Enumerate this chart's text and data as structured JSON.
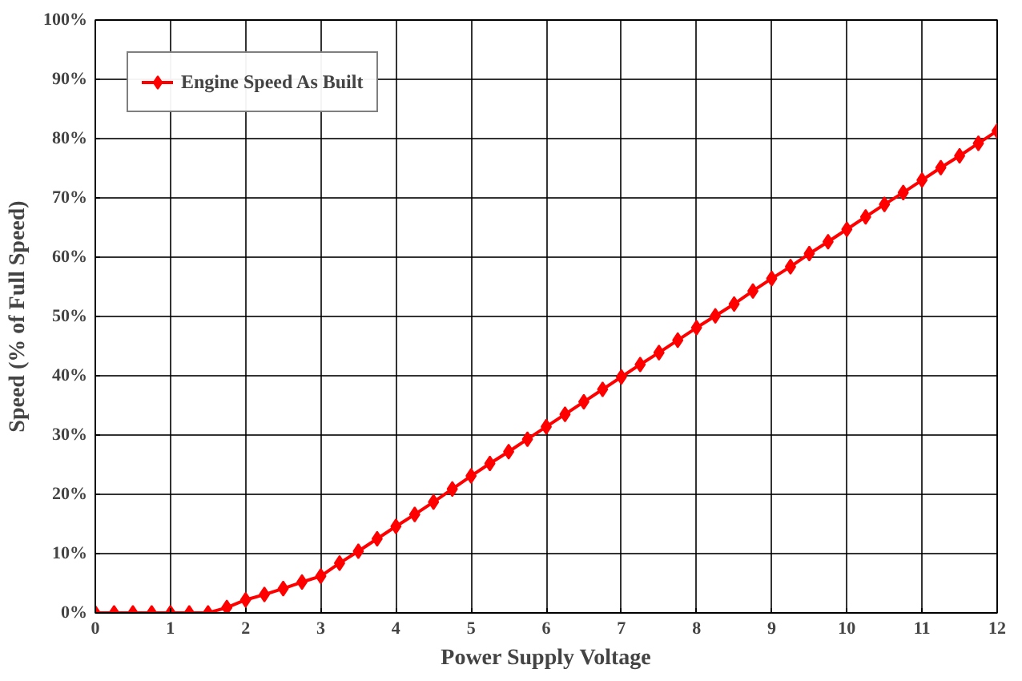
{
  "chart_data": {
    "type": "line",
    "xlabel": "Power Supply Voltage",
    "ylabel": "Speed (% of Full Speed)",
    "x": [
      0,
      0.25,
      0.5,
      0.75,
      1,
      1.25,
      1.5,
      1.75,
      2,
      2.25,
      2.5,
      2.75,
      3,
      3.25,
      3.5,
      3.75,
      4,
      4.25,
      4.5,
      4.75,
      5,
      5.25,
      5.5,
      5.75,
      6,
      6.25,
      6.5,
      6.75,
      7,
      7.25,
      7.5,
      7.75,
      8,
      8.25,
      8.5,
      8.75,
      9,
      9.25,
      9.5,
      9.75,
      10,
      10.25,
      10.5,
      10.75,
      11,
      11.25,
      11.5,
      11.75,
      12
    ],
    "series": [
      {
        "name": "Engine Speed As Built",
        "color": "#ff0000",
        "values": [
          0,
          0,
          0,
          0,
          0,
          0,
          0,
          0.9,
          2.2,
          3.1,
          4.1,
          5.2,
          6.2,
          8.4,
          10.4,
          12.5,
          14.6,
          16.6,
          18.7,
          20.9,
          23.1,
          25.2,
          27.2,
          29.3,
          31.4,
          33.5,
          35.6,
          37.7,
          39.8,
          41.9,
          43.9,
          46.0,
          48.1,
          50.1,
          52.1,
          54.3,
          56.4,
          58.4,
          60.6,
          62.6,
          64.7,
          66.8,
          68.9,
          70.9,
          73.0,
          75.1,
          77.1,
          79.2,
          81.3
        ]
      }
    ],
    "xlim": [
      0,
      12
    ],
    "xticks": [
      0,
      1,
      2,
      3,
      4,
      5,
      6,
      7,
      8,
      9,
      10,
      11,
      12
    ],
    "ylim": [
      0,
      100
    ],
    "yticks": [
      {
        "value": 0,
        "label": "0%"
      },
      {
        "value": 10,
        "label": "10%"
      },
      {
        "value": 20,
        "label": "20%"
      },
      {
        "value": 30,
        "label": "30%"
      },
      {
        "value": 40,
        "label": "40%"
      },
      {
        "value": 50,
        "label": "50%"
      },
      {
        "value": 60,
        "label": "60%"
      },
      {
        "value": 70,
        "label": "70%"
      },
      {
        "value": 80,
        "label": "80%"
      },
      {
        "value": 90,
        "label": "90%"
      },
      {
        "value": 100,
        "label": "100%"
      }
    ],
    "grid": true,
    "legend": "top left",
    "marker": "diamond",
    "line_style": "solid"
  }
}
